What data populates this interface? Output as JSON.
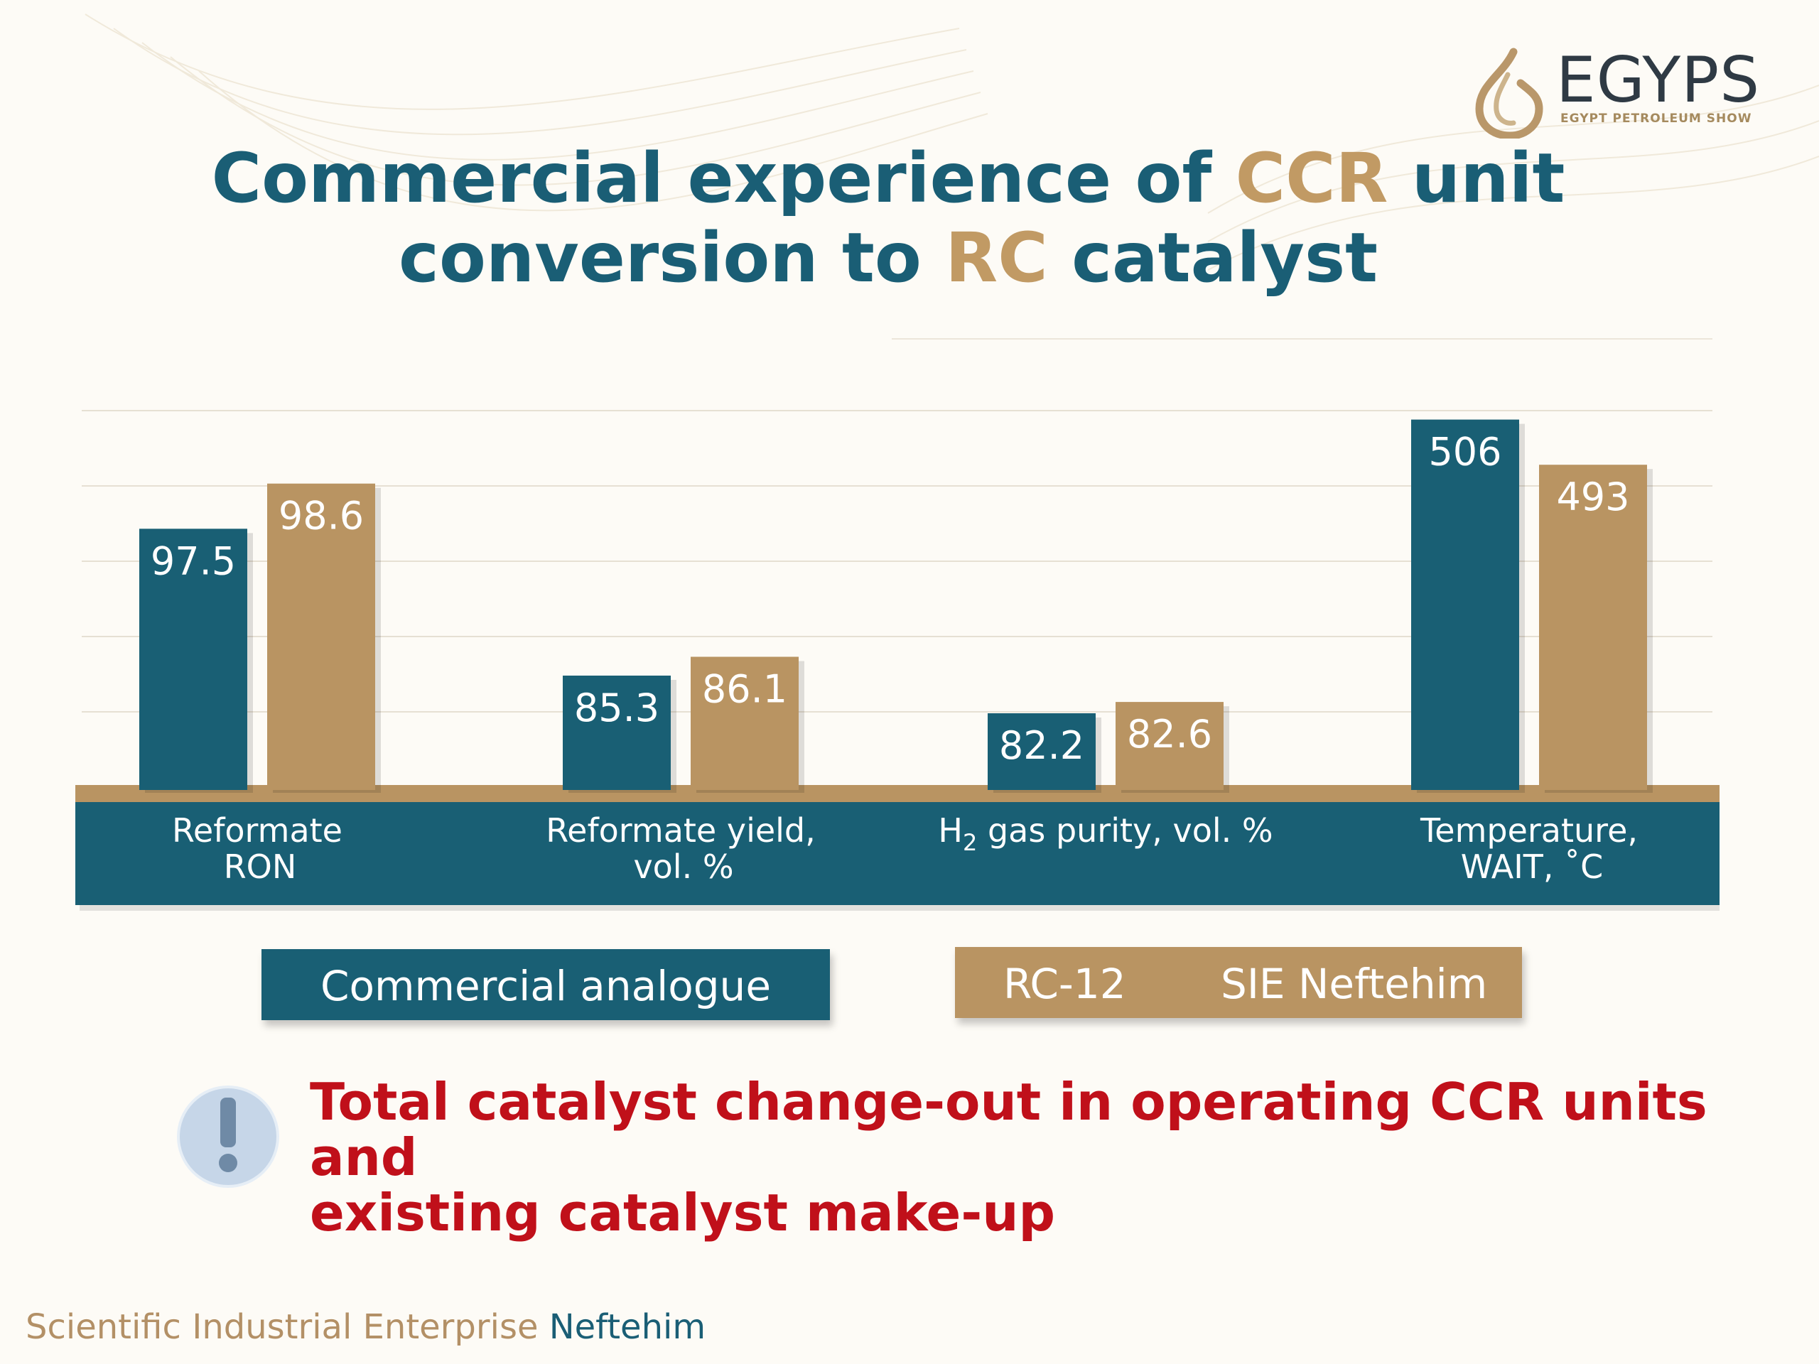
{
  "logo": {
    "name": "EGYPS",
    "tagline": "EGYPT PETROLEUM SHOW"
  },
  "title": {
    "line1_part1": "Commercial experience of ",
    "line1_highlight": "CCR",
    "line1_part2": " unit",
    "line2_part1": "conversion to ",
    "line2_highlight": "RC",
    "line2_part2": " catalyst"
  },
  "chart_data": {
    "type": "bar",
    "title": "",
    "xlabel": "",
    "ylabel": "",
    "grid": true,
    "legend_position": "bottom",
    "categories": [
      {
        "label_line1": "Reformate",
        "label_line2": "RON"
      },
      {
        "label_line1": "Reformate yield,",
        "label_line2": "vol. %"
      },
      {
        "label_line1": "H",
        "label_sub": "2",
        "label_rest": " gas purity, vol. %",
        "label_line2": ""
      },
      {
        "label_line1": "Temperature,",
        "label_line2": "WAIT, ˚C"
      }
    ],
    "series": [
      {
        "name": "Commercial analogue",
        "color": "#195f74",
        "values": [
          "97.5",
          "85.3",
          "82.2",
          "506"
        ],
        "bar_fraction": [
          0.69,
          0.3,
          0.2,
          0.98
        ]
      },
      {
        "name": "RC-12 SIE Neftehim",
        "color": "#b99462",
        "values": [
          "98.6",
          "86.1",
          "82.6",
          "493"
        ],
        "bar_fraction": [
          0.81,
          0.35,
          0.23,
          0.86
        ]
      }
    ]
  },
  "legend": {
    "series1": "Commercial analogue",
    "series2_a": "RC-12",
    "series2_b": "SIE Neftehim"
  },
  "note": {
    "line1": "Total catalyst change-out in operating CCR units and",
    "line2": "existing catalyst make-up",
    "icon": "exclamation-icon"
  },
  "footer": {
    "text": "Scientific Industrial Enterprise ",
    "brand": "Neftehim"
  },
  "colors": {
    "teal": "#195f74",
    "gold": "#b99462",
    "red": "#c0101a"
  }
}
